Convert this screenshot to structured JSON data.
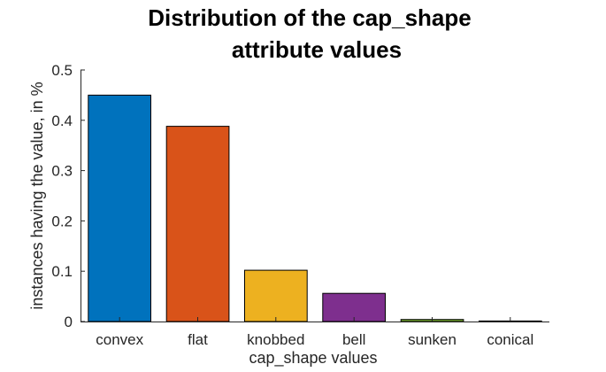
{
  "chart_data": {
    "type": "bar",
    "title": [
      "Distribution of the cap_shape",
      "attribute values"
    ],
    "xlabel": "cap_shape values",
    "ylabel": "instances having the value, in %",
    "categories": [
      "convex",
      "flat",
      "knobbed",
      "bell",
      "sunken",
      "conical"
    ],
    "values": [
      0.45,
      0.388,
      0.102,
      0.056,
      0.004,
      0.001
    ],
    "colors": [
      "#0072BD",
      "#D95319",
      "#EDB120",
      "#7E2F8E",
      "#77AC30",
      "#4DBEEE"
    ],
    "ylim": [
      0,
      0.5
    ],
    "yticks": [
      0,
      0.1,
      0.2,
      0.3,
      0.4,
      0.5
    ],
    "ytick_labels": [
      "0",
      "0.1",
      "0.2",
      "0.3",
      "0.4",
      "0.5"
    ],
    "grid": false,
    "legend": "none"
  }
}
